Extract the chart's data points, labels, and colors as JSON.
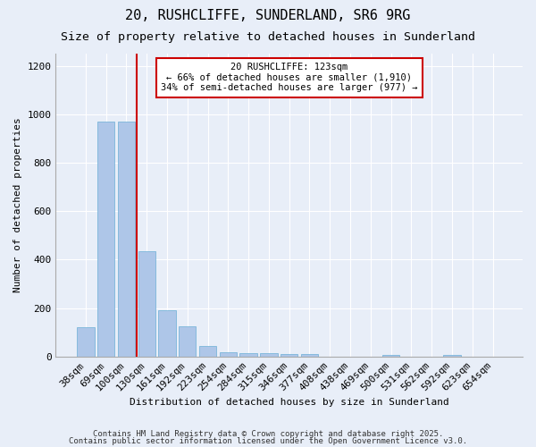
{
  "title1": "20, RUSHCLIFFE, SUNDERLAND, SR6 9RG",
  "title2": "Size of property relative to detached houses in Sunderland",
  "xlabel": "Distribution of detached houses by size in Sunderland",
  "ylabel": "Number of detached properties",
  "categories": [
    "38sqm",
    "69sqm",
    "100sqm",
    "130sqm",
    "161sqm",
    "192sqm",
    "223sqm",
    "254sqm",
    "284sqm",
    "315sqm",
    "346sqm",
    "377sqm",
    "408sqm",
    "438sqm",
    "469sqm",
    "500sqm",
    "531sqm",
    "562sqm",
    "592sqm",
    "623sqm",
    "654sqm"
  ],
  "values": [
    120,
    970,
    970,
    435,
    190,
    125,
    45,
    18,
    15,
    15,
    12,
    12,
    0,
    0,
    0,
    8,
    0,
    0,
    8,
    0,
    0
  ],
  "bar_color": "#aec6e8",
  "bar_edge_color": "#6baed6",
  "redline_index": 3,
  "annotation_text": "20 RUSHCLIFFE: 123sqm\n← 66% of detached houses are smaller (1,910)\n34% of semi-detached houses are larger (977) →",
  "annotation_box_color": "#ffffff",
  "annotation_box_edge": "#cc0000",
  "redline_color": "#cc0000",
  "ylim": [
    0,
    1250
  ],
  "yticks": [
    0,
    200,
    400,
    600,
    800,
    1000,
    1200
  ],
  "footer1": "Contains HM Land Registry data © Crown copyright and database right 2025.",
  "footer2": "Contains public sector information licensed under the Open Government Licence v3.0.",
  "bg_color": "#e8eef8",
  "plot_bg": "#e8eef8",
  "title1_fontsize": 11,
  "title2_fontsize": 9.5,
  "xlabel_fontsize": 8,
  "ylabel_fontsize": 8,
  "tick_fontsize": 8,
  "footer_fontsize": 6.5,
  "ann_fontsize": 7.5
}
